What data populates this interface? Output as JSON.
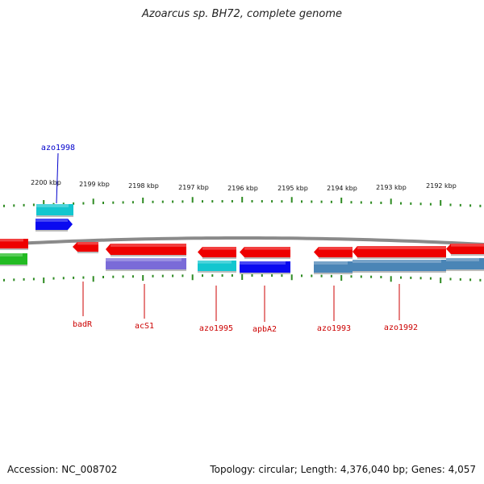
{
  "title": "Azoarcus sp. BH72, complete genome",
  "footer": {
    "accession": "Accession: NC_008702",
    "topology": "Topology: circular; Length: 4,376,040 bp; Genes: 4,057"
  },
  "colors": {
    "backbone": "#8a8a8a",
    "tick": "#2e8b22",
    "red_gene": "#ee0000",
    "cyan_gene": "#13c6cf",
    "blue_gene": "#0a0af0",
    "purple_gene": "#7a6bd8",
    "steel_gene": "#4a85b6",
    "green_gene": "#22bb22",
    "label_red": "#cc0000",
    "label_blue": "#0000cc"
  },
  "ruler": {
    "unit": "kbp",
    "labels": [
      "2200 kbp",
      "2199 kbp",
      "2198 kbp",
      "2197 kbp",
      "2196 kbp",
      "2195 kbp",
      "2194 kbp",
      "2193 kbp",
      "2192 kbp"
    ]
  },
  "gene_labels": [
    {
      "name": "azo1998",
      "color": "blue"
    },
    {
      "name": "badR",
      "color": "red"
    },
    {
      "name": "acS1",
      "color": "red"
    },
    {
      "name": "azo1995",
      "color": "red"
    },
    {
      "name": "apbA2",
      "color": "red"
    },
    {
      "name": "azo1993",
      "color": "red"
    },
    {
      "name": "azo1992",
      "color": "red"
    }
  ]
}
